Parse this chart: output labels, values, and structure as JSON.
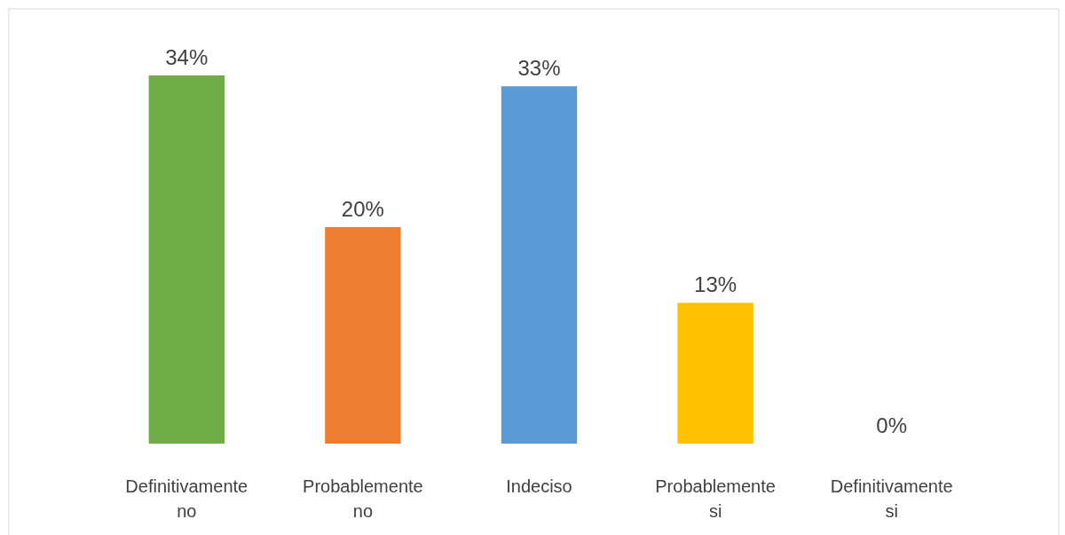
{
  "chart_data": {
    "type": "bar",
    "categories": [
      "Definitivamente no",
      "Probablemente no",
      "Indeciso",
      "Probablemente si",
      "Definitivamente si"
    ],
    "values": [
      34,
      20,
      33,
      13,
      0
    ],
    "colors": [
      "#70ad47",
      "#ed7d31",
      "#5b9bd5",
      "#ffc000",
      "#a5a5a5"
    ],
    "value_labels": [
      "34%",
      "20%",
      "33%",
      "13%",
      "0%"
    ]
  }
}
